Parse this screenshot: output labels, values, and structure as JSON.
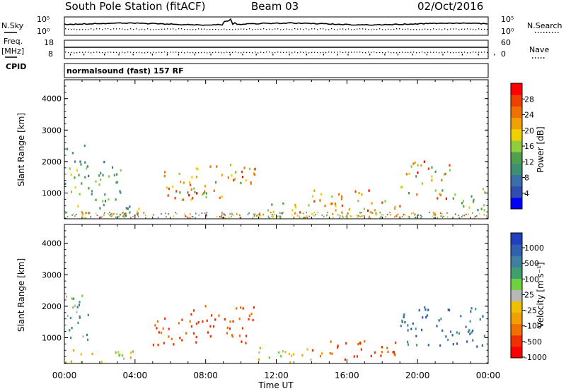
{
  "header": {
    "station": "South Pole Station (fitACF)",
    "beam": "Beam 03",
    "date": "02/Oct/2016"
  },
  "top_panels": {
    "nsky_label": "N.Sky",
    "nsearch_label": "N.Search",
    "nsky_ticks": [
      "10^5",
      "10^0"
    ],
    "nsearch_ticks": [
      "10^5",
      "10^0"
    ],
    "freq_label_line1": "Freq.",
    "freq_label_line2": "[MHz]",
    "freq_ticks": [
      "18",
      "8"
    ],
    "nave_label": "Nave",
    "nave_ticks": [
      "60",
      "0"
    ],
    "cpid_label": "CPID",
    "cpid_value": "normalsound (fast) 157 RF"
  },
  "colors": {
    "power_scale": [
      "#0000ff",
      "#2f4fb0",
      "#3b6fa8",
      "#3f8f70",
      "#4f9f4f",
      "#8fcf3f",
      "#f0d000",
      "#f0a000",
      "#f07000",
      "#f04000",
      "#ff0000"
    ],
    "velocity_scale": [
      "#2040c0",
      "#3060b0",
      "#3f7f9f",
      "#3f9f6f",
      "#6fd040",
      "#b8b8b8",
      "#f0c000",
      "#f0a000",
      "#f07000",
      "#f03000",
      "#ff0000"
    ]
  },
  "chart_data": [
    {
      "type": "heatmap",
      "name": "power",
      "ylabel": "Slant Range [km]",
      "ylim": [
        180,
        4600
      ],
      "yticks": [
        "1000",
        "2000",
        "3000",
        "4000"
      ],
      "ytick_values": [
        1000,
        2000,
        3000,
        4000
      ],
      "xlim_hours": [
        0,
        24
      ],
      "colorbar_label": "Power [dB]",
      "colorbar_ticks": [
        "4",
        "8",
        "12",
        "16",
        "20",
        "24",
        "28"
      ],
      "colorbar_range": [
        0,
        32
      ],
      "echo_regions": [
        {
          "t0": 0.0,
          "t1": 4.2,
          "r0": 200,
          "r1": 620,
          "v0": 4,
          "v1": 24
        },
        {
          "t0": 0.0,
          "t1": 1.4,
          "r0": 800,
          "r1": 2500,
          "v0": 8,
          "v1": 20
        },
        {
          "t0": 1.5,
          "t1": 3.5,
          "r0": 600,
          "r1": 2000,
          "v0": 6,
          "v1": 16
        },
        {
          "t0": 5.0,
          "t1": 7.2,
          "r0": 750,
          "r1": 1700,
          "v0": 12,
          "v1": 28
        },
        {
          "t0": 7.0,
          "t1": 10.8,
          "r0": 800,
          "r1": 2000,
          "v0": 12,
          "v1": 30
        },
        {
          "t0": 10.8,
          "t1": 14.0,
          "r0": 200,
          "r1": 700,
          "v0": 12,
          "v1": 28
        },
        {
          "t0": 14.0,
          "t1": 17.5,
          "r0": 250,
          "r1": 1100,
          "v0": 16,
          "v1": 30
        },
        {
          "t0": 17.5,
          "t1": 19.0,
          "r0": 250,
          "r1": 800,
          "v0": 16,
          "v1": 30
        },
        {
          "t0": 19.0,
          "t1": 21.8,
          "r0": 800,
          "r1": 2000,
          "v0": 10,
          "v1": 30
        },
        {
          "t0": 21.8,
          "t1": 23.9,
          "r0": 400,
          "r1": 1200,
          "v0": 8,
          "v1": 18
        }
      ]
    },
    {
      "type": "heatmap",
      "name": "velocity",
      "ylabel": "Slant Range [km]",
      "ylim": [
        180,
        4600
      ],
      "yticks": [
        "1000",
        "2000",
        "3000",
        "4000"
      ],
      "ytick_values": [
        1000,
        2000,
        3000,
        4000
      ],
      "xlabel": "Time UT",
      "xticks": [
        "00:00",
        "04:00",
        "08:00",
        "12:00",
        "16:00",
        "20:00",
        "00:00"
      ],
      "xtick_hours": [
        0,
        4,
        8,
        12,
        16,
        20,
        24
      ],
      "colorbar_label": "Velocity [m s⁻¹]",
      "colorbar_ticks": [
        "1000",
        "500",
        "100",
        "25",
        "-25",
        "-100",
        "-500",
        "-1000"
      ],
      "echo_regions": [
        {
          "t0": 0.0,
          "t1": 4.2,
          "r0": 200,
          "r1": 620,
          "v0": -100,
          "v1": 100
        },
        {
          "t0": 0.0,
          "t1": 1.4,
          "r0": 800,
          "r1": 2500,
          "v0": 25,
          "v1": 500
        },
        {
          "t0": 5.0,
          "t1": 7.2,
          "r0": 750,
          "r1": 1700,
          "v0": -500,
          "v1": -100
        },
        {
          "t0": 7.0,
          "t1": 10.8,
          "r0": 800,
          "r1": 2000,
          "v0": -500,
          "v1": -100
        },
        {
          "t0": 10.8,
          "t1": 14.0,
          "r0": 200,
          "r1": 700,
          "v0": -100,
          "v1": 100
        },
        {
          "t0": 14.0,
          "t1": 19.0,
          "r0": 250,
          "r1": 900,
          "v0": -500,
          "v1": -25
        },
        {
          "t0": 19.0,
          "t1": 23.9,
          "r0": 700,
          "r1": 2000,
          "v0": 100,
          "v1": 1000
        }
      ]
    }
  ]
}
